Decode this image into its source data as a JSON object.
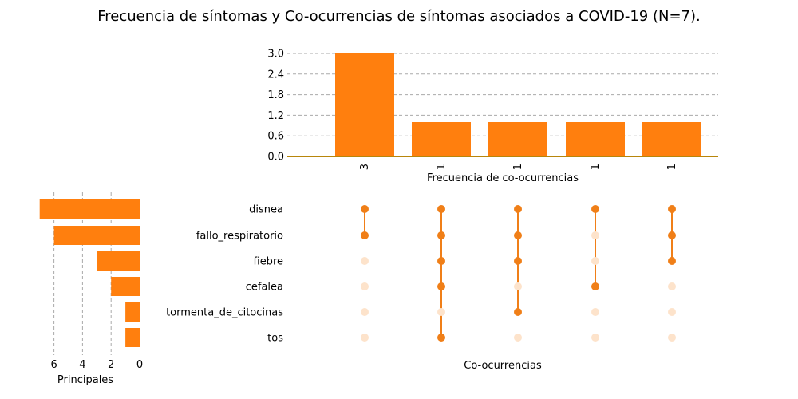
{
  "title": "Frecuencia de síntomas y Co-ocurrencias de síntomas asociados a COVID-19 (N=7).",
  "colors": {
    "bar": "#ff7f0e",
    "dot_active": "#f07f18",
    "dot_inactive": "#fde3cb",
    "grid": "#aaaaaa",
    "baseline": "#b8860b"
  },
  "chart_data": [
    {
      "type": "bar",
      "name": "co-occurrence-frequency",
      "xlabel": "Frecuencia de co-ocurrencias",
      "ylabel": "",
      "ylim": [
        0,
        3.0
      ],
      "yticks": [
        "0.0",
        "0.6",
        "1.2",
        "1.8",
        "2.4",
        "3.0"
      ],
      "values": [
        3,
        1,
        1,
        1,
        1
      ],
      "value_labels": [
        "3",
        "1",
        "1",
        "1",
        "1"
      ],
      "grid": "horizontal dashed"
    },
    {
      "type": "bar",
      "orientation": "horizontal",
      "name": "symptom-totals",
      "xlabel": "Principales",
      "xticks": [
        "6",
        "4",
        "2",
        "0"
      ],
      "xlim": [
        7.3,
        0
      ],
      "categories": [
        "disnea",
        "fallo_respiratorio",
        "fiebre",
        "cefalea",
        "tormenta_de_citocinas",
        "tos"
      ],
      "values": [
        7,
        6,
        3,
        2,
        1,
        1
      ],
      "grid": "vertical dashed"
    },
    {
      "type": "matrix",
      "name": "co-occurrence-matrix",
      "xlabel": "Co-ocurrencias",
      "rows": [
        "disnea",
        "fallo_respiratorio",
        "fiebre",
        "cefalea",
        "tormenta_de_citocinas",
        "tos"
      ],
      "combinations": [
        [
          1,
          1,
          0,
          0,
          0,
          0
        ],
        [
          1,
          1,
          1,
          1,
          0,
          1
        ],
        [
          1,
          1,
          1,
          0,
          1,
          0
        ],
        [
          1,
          0,
          0,
          1,
          0,
          0
        ],
        [
          1,
          1,
          1,
          0,
          0,
          0
        ]
      ]
    }
  ]
}
